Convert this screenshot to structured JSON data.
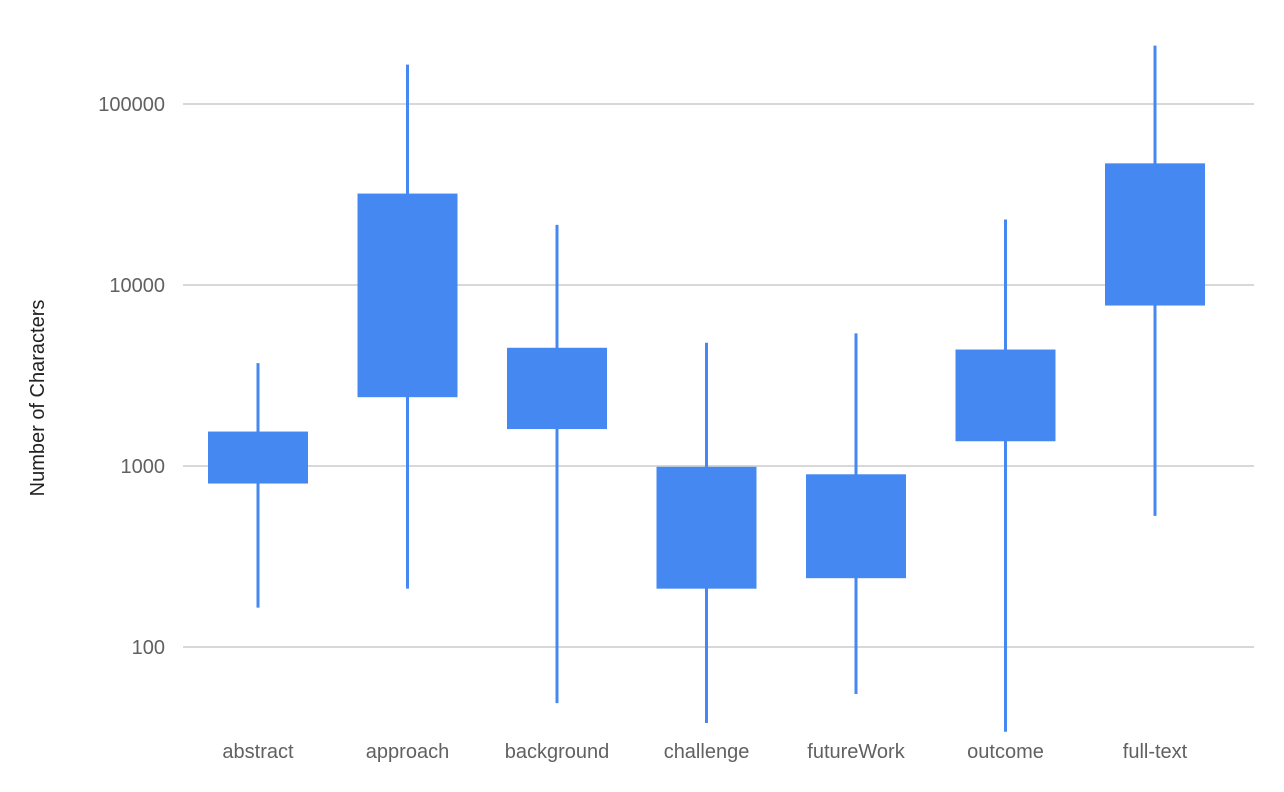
{
  "chart_data": {
    "type": "candlestick",
    "ylabel": "Number of Characters",
    "xlabel": "",
    "y_scale": "log",
    "ylim": [
      33,
      220000
    ],
    "y_ticks": [
      "100",
      "1000",
      "10000",
      "100000"
    ],
    "categories": [
      "abstract",
      "approach",
      "background",
      "challenge",
      "futureWork",
      "outcome",
      "full-text"
    ],
    "series": [
      {
        "low": [
          165,
          210,
          49,
          38,
          55,
          34,
          530
        ],
        "box_bottom": [
          800,
          2400,
          1600,
          210,
          240,
          1370,
          7700
        ],
        "box_top": [
          1550,
          32000,
          4500,
          990,
          900,
          4400,
          47000
        ],
        "high": [
          3700,
          165000,
          21500,
          4800,
          5400,
          23000,
          210000
        ]
      }
    ],
    "colors": {
      "series": "#4688f1",
      "grid": "#cccccc"
    },
    "grid": true,
    "legend": "none"
  }
}
